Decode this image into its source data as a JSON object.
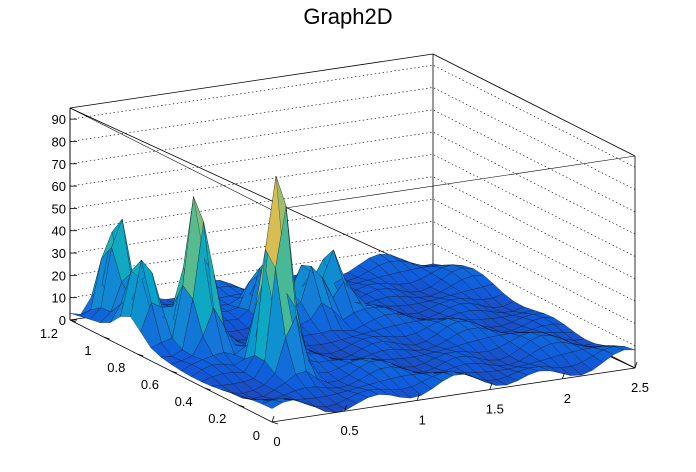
{
  "chart_data": {
    "type": "surface",
    "title": "Graph2D",
    "xlabel": "",
    "ylabel": "",
    "zlabel": "",
    "xlim": [
      0,
      2.5
    ],
    "ylim": [
      0,
      1.2
    ],
    "zlim": [
      0,
      95
    ],
    "x_ticks": [
      "0",
      "0.5",
      "1",
      "1.5",
      "2",
      "2.5"
    ],
    "y_ticks": [
      "0",
      "0.2",
      "0.4",
      "0.6",
      "0.8",
      "1",
      "1.2"
    ],
    "z_ticks": [
      "0",
      "10",
      "20",
      "30",
      "40",
      "50",
      "60",
      "70",
      "80",
      "90"
    ],
    "grid": true,
    "colormap": [
      "#352a87",
      "#0f5cdd",
      "#1481d6",
      "#06a4ca",
      "#2eb7a4",
      "#87bf77",
      "#d1bb59",
      "#fec832",
      "#f9fb0e"
    ],
    "peaks": [
      {
        "x": 0.2,
        "y": 1.1,
        "z": 50
      },
      {
        "x": 0.1,
        "y": 0.85,
        "z": 38
      },
      {
        "x": 0.3,
        "y": 0.7,
        "z": 68
      },
      {
        "x": 0.5,
        "y": 0.4,
        "z": 92
      },
      {
        "x": 1.0,
        "y": 0.9,
        "z": 30
      },
      {
        "x": 1.2,
        "y": 0.8,
        "z": 28
      },
      {
        "x": 1.4,
        "y": 0.85,
        "z": 26
      }
    ]
  }
}
